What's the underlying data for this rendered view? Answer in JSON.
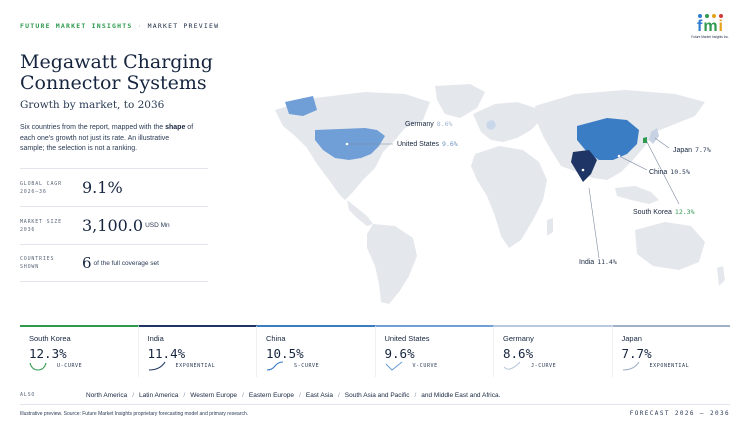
{
  "header": {
    "brand": "FUTURE MARKET INSIGHTS",
    "separator": "·",
    "section": "MARKET PREVIEW",
    "logo_letters": [
      "f",
      "m",
      "i"
    ],
    "logo_colors": [
      "#2e7dd1",
      "#2e9a4e",
      "#e3a21a",
      "#d33b3b"
    ],
    "logo_tag": "Future Market Insights Inc."
  },
  "title": "Megawatt Charging Connector Systems",
  "subtitle": "Growth by market, to 2036",
  "description": {
    "part1": "Six countries from the report, mapped with the ",
    "bold": "shape",
    "part2": " of each one's growth not just its rate. An illustrative sample; the selection is not a ranking."
  },
  "stats": {
    "cagr": {
      "label1": "GLOBAL CAGR",
      "label2": "2026–36",
      "value": "9.1%"
    },
    "size": {
      "label1": "MARKET SIZE",
      "label2": "2036",
      "value": "3,100.0",
      "unit": "USD Mn"
    },
    "countries": {
      "label1": "COUNTRIES",
      "label2": "SHOWN",
      "value": "6",
      "unit": "of the full coverage set"
    }
  },
  "map_labels": [
    {
      "name": "Germany",
      "pct": "8.6%",
      "pct_color": "#9fb3cf"
    },
    {
      "name": "United States",
      "pct": "9.6%",
      "pct_color": "#6f93c2"
    },
    {
      "name": "Japan",
      "pct": "7.7%",
      "pct_color": "#2a3a55"
    },
    {
      "name": "China",
      "pct": "10.5%",
      "pct_color": "#2a3a55"
    },
    {
      "name": "South Korea",
      "pct": "12.3%",
      "pct_color": "#2e9a4e"
    },
    {
      "name": "India",
      "pct": "11.4%",
      "pct_color": "#2a3a55"
    }
  ],
  "colors": {
    "land": "#e4e7eb",
    "usa": "#6f9fd6",
    "china": "#3b7dc4",
    "india": "#1e3566",
    "germany": "#c9d7ea",
    "japan": "#c7d3e3",
    "korea": "#2e9a4e"
  },
  "cards": [
    {
      "name": "South Korea",
      "value": "12.3%",
      "shape": "U-CURVE",
      "color": "#2e9a4e"
    },
    {
      "name": "India",
      "value": "11.4%",
      "shape": "EXPONENTIAL",
      "color": "#1e3566"
    },
    {
      "name": "China",
      "value": "10.5%",
      "shape": "S-CURVE",
      "color": "#3b7dc4"
    },
    {
      "name": "United States",
      "value": "9.6%",
      "shape": "V-CURVE",
      "color": "#6f9fd6"
    },
    {
      "name": "Germany",
      "value": "8.6%",
      "shape": "J-CURVE",
      "color": "#b8c8de"
    },
    {
      "name": "Japan",
      "value": "7.7%",
      "shape": "EXPONENTIAL",
      "color": "#9fb0c6"
    }
  ],
  "also": {
    "label": "ALSO",
    "regions": [
      "North America",
      "Latin America",
      "Western Europe",
      "Eastern Europe",
      "East Asia",
      "South Asia and Pacific",
      "and Middle East and Africa."
    ]
  },
  "footer": {
    "source": "Illustrative preview. Source: Future Market Insights proprietary forecasting model and primary research.",
    "forecast": "FORECAST 2026 – 2036"
  }
}
